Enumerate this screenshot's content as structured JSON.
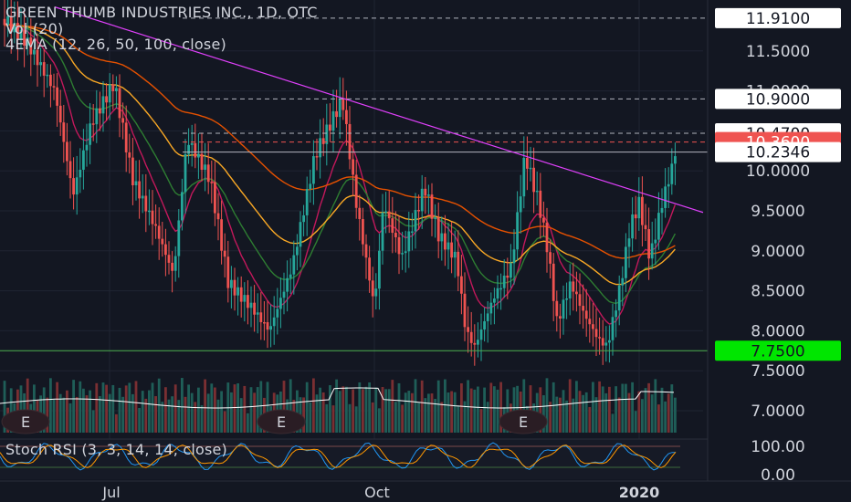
{
  "header": {
    "symbol_title": "GREEN THUMB INDUSTRIES INC., 1D, OTC",
    "volume_label": "Vol (20)",
    "ema_label": "4EMA (12, 26, 50, 100, close)",
    "stoch_label": "Stoch RSI (3, 3, 14, 14, close)"
  },
  "price_axis": {
    "ticks": [
      "11.5000",
      "11.0000",
      "10.5000",
      "10.0000",
      "9.5000",
      "9.0000",
      "8.5000",
      "8.0000",
      "7.5000",
      "7.0000"
    ],
    "tagged": [
      {
        "value": "11.9100",
        "style": "white",
        "dashed": true
      },
      {
        "value": "10.9000",
        "style": "white",
        "dashed": true
      },
      {
        "value": "10.4700",
        "style": "white",
        "dashed": true
      },
      {
        "value": "10.3600",
        "style": "red",
        "dashed": true
      },
      {
        "value": "10.2346",
        "style": "white",
        "dashed": false
      },
      {
        "value": "7.7500",
        "style": "green",
        "dashed": false
      }
    ]
  },
  "stoch_axis": {
    "ticks": [
      "100.00",
      "0.00"
    ]
  },
  "time_axis": {
    "labels": [
      "Jul",
      "Oct",
      "2020"
    ]
  },
  "earnings_markers": [
    "E",
    "E",
    "E"
  ],
  "colors": {
    "background": "#131722",
    "up": "#26a69a",
    "down": "#ef5350",
    "trendline": "#e040fb",
    "support": "#4caf50",
    "ema12": "#c2185b",
    "ema26": "#2e7d32",
    "ema50": "#f9a825",
    "ema100": "#e65100",
    "volume_ma": "#ffffff",
    "stoch_k": "#2196f3",
    "stoch_d": "#ff9800"
  },
  "chart_data": {
    "type": "line",
    "title": "GREEN THUMB INDUSTRIES INC., 1D, OTC",
    "xlabel": "",
    "ylabel": "",
    "ylim": [
      6.9,
      12.0
    ],
    "x_tick_labels": [
      "Jul",
      "Oct",
      "2020"
    ],
    "approx_close_path": [
      {
        "x": "Jun",
        "y": 11.9
      },
      {
        "x": "early Jul",
        "y": 11.1
      },
      {
        "x": "mid Jul",
        "y": 9.6
      },
      {
        "x": "late Jul",
        "y": 10.4
      },
      {
        "x": "Aug",
        "y": 8.8
      },
      {
        "x": "late Aug",
        "y": 8.0
      },
      {
        "x": "mid Sep",
        "y": 10.2
      },
      {
        "x": "late Sep",
        "y": 10.9
      },
      {
        "x": "early Oct",
        "y": 9.4
      },
      {
        "x": "Oct",
        "y": 8.0
      },
      {
        "x": "late Oct",
        "y": 9.7
      },
      {
        "x": "Nov",
        "y": 7.8
      },
      {
        "x": "mid Nov",
        "y": 8.8
      },
      {
        "x": "late Nov",
        "y": 10.3
      },
      {
        "x": "early Dec",
        "y": 8.4
      },
      {
        "x": "mid Dec",
        "y": 7.8
      },
      {
        "x": "late Dec",
        "y": 9.6
      },
      {
        "x": "early Jan",
        "y": 9.3
      },
      {
        "x": "mid Jan",
        "y": 10.36
      }
    ],
    "last_close": 10.36,
    "support_level": 7.75,
    "resistance_levels": [
      10.9,
      10.47,
      10.2346
    ],
    "period_high": 11.91,
    "indicators": [
      "Vol (20)",
      "4EMA (12, 26, 50, 100, close)",
      "Stoch RSI (3, 3, 14, 14, close)"
    ],
    "stoch_range": [
      0,
      100
    ]
  }
}
